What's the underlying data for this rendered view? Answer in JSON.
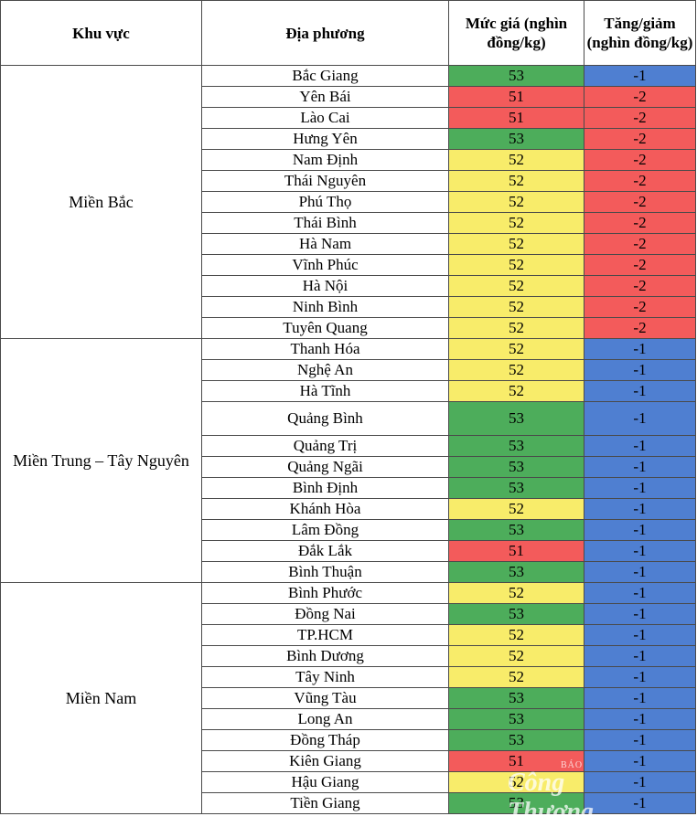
{
  "colors": {
    "green": "#4dad5b",
    "red": "#f35b5b",
    "yellow": "#f8ec6a",
    "blue": "#4f7fd1"
  },
  "table": {
    "headers": {
      "region": "Khu vực",
      "locality": "Địa phương",
      "price": "Mức giá (nghìn đồng/kg)",
      "change": "Tăng/giảm (nghìn đồng/kg)"
    },
    "groups": [
      {
        "region": "Miền Bắc",
        "rows": [
          {
            "locality": "Bắc Giang",
            "price": "53",
            "change": "-1",
            "price_color": "green",
            "change_color": "blue"
          },
          {
            "locality": "Yên Bái",
            "price": "51",
            "change": "-2",
            "price_color": "red",
            "change_color": "red"
          },
          {
            "locality": "Lào Cai",
            "price": "51",
            "change": "-2",
            "price_color": "red",
            "change_color": "red"
          },
          {
            "locality": "Hưng Yên",
            "price": "53",
            "change": "-2",
            "price_color": "green",
            "change_color": "red"
          },
          {
            "locality": "Nam Định",
            "price": "52",
            "change": "-2",
            "price_color": "yellow",
            "change_color": "red"
          },
          {
            "locality": "Thái Nguyên",
            "price": "52",
            "change": "-2",
            "price_color": "yellow",
            "change_color": "red"
          },
          {
            "locality": "Phú Thọ",
            "price": "52",
            "change": "-2",
            "price_color": "yellow",
            "change_color": "red"
          },
          {
            "locality": "Thái Bình",
            "price": "52",
            "change": "-2",
            "price_color": "yellow",
            "change_color": "red"
          },
          {
            "locality": "Hà Nam",
            "price": "52",
            "change": "-2",
            "price_color": "yellow",
            "change_color": "red"
          },
          {
            "locality": "Vĩnh Phúc",
            "price": "52",
            "change": "-2",
            "price_color": "yellow",
            "change_color": "red"
          },
          {
            "locality": "Hà Nội",
            "price": "52",
            "change": "-2",
            "price_color": "yellow",
            "change_color": "red"
          },
          {
            "locality": "Ninh Bình",
            "price": "52",
            "change": "-2",
            "price_color": "yellow",
            "change_color": "red"
          },
          {
            "locality": "Tuyên Quang",
            "price": "52",
            "change": "-2",
            "price_color": "yellow",
            "change_color": "red"
          }
        ]
      },
      {
        "region": "Miền Trung – Tây Nguyên",
        "rows": [
          {
            "locality": "Thanh Hóa",
            "price": "52",
            "change": "-1",
            "price_color": "yellow",
            "change_color": "blue"
          },
          {
            "locality": "Nghệ An",
            "price": "52",
            "change": "-1",
            "price_color": "yellow",
            "change_color": "blue"
          },
          {
            "locality": "Hà Tĩnh",
            "price": "52",
            "change": "-1",
            "price_color": "yellow",
            "change_color": "blue"
          },
          {
            "locality": "Quảng Bình",
            "price": "53",
            "change": "-1",
            "price_color": "green",
            "change_color": "blue",
            "tall": true
          },
          {
            "locality": "Quảng Trị",
            "price": "53",
            "change": "-1",
            "price_color": "green",
            "change_color": "blue"
          },
          {
            "locality": "Quảng Ngãi",
            "price": "53",
            "change": "-1",
            "price_color": "green",
            "change_color": "blue"
          },
          {
            "locality": "Bình Định",
            "price": "53",
            "change": "-1",
            "price_color": "green",
            "change_color": "blue"
          },
          {
            "locality": "Khánh Hòa",
            "price": "52",
            "change": "-1",
            "price_color": "yellow",
            "change_color": "blue"
          },
          {
            "locality": "Lâm Đồng",
            "price": "53",
            "change": "-1",
            "price_color": "green",
            "change_color": "blue"
          },
          {
            "locality": "Đắk Lắk",
            "price": "51",
            "change": "-1",
            "price_color": "red",
            "change_color": "blue"
          },
          {
            "locality": "Bình Thuận",
            "price": "53",
            "change": "-1",
            "price_color": "green",
            "change_color": "blue"
          }
        ]
      },
      {
        "region": "Miền Nam",
        "rows": [
          {
            "locality": "Bình Phước",
            "price": "52",
            "change": "-1",
            "price_color": "yellow",
            "change_color": "blue"
          },
          {
            "locality": "Đồng Nai",
            "price": "53",
            "change": "-1",
            "price_color": "green",
            "change_color": "blue"
          },
          {
            "locality": "TP.HCM",
            "price": "52",
            "change": "-1",
            "price_color": "yellow",
            "change_color": "blue"
          },
          {
            "locality": "Bình Dương",
            "price": "52",
            "change": "-1",
            "price_color": "yellow",
            "change_color": "blue"
          },
          {
            "locality": "Tây Ninh",
            "price": "52",
            "change": "-1",
            "price_color": "yellow",
            "change_color": "blue"
          },
          {
            "locality": "Vũng Tàu",
            "price": "53",
            "change": "-1",
            "price_color": "green",
            "change_color": "blue"
          },
          {
            "locality": "Long An",
            "price": "53",
            "change": "-1",
            "price_color": "green",
            "change_color": "blue"
          },
          {
            "locality": "Đồng Tháp",
            "price": "53",
            "change": "-1",
            "price_color": "green",
            "change_color": "blue"
          },
          {
            "locality": "Kiên Giang",
            "price": "51",
            "change": "-1",
            "price_color": "red",
            "change_color": "blue"
          },
          {
            "locality": "Hậu Giang",
            "price": "52",
            "change": "-1",
            "price_color": "yellow",
            "change_color": "blue"
          },
          {
            "locality": "Tiền Giang",
            "price": "53",
            "change": "-1",
            "price_color": "green",
            "change_color": "blue"
          }
        ]
      }
    ]
  },
  "watermark": {
    "top": "BÁO",
    "main": "Công Thương"
  }
}
